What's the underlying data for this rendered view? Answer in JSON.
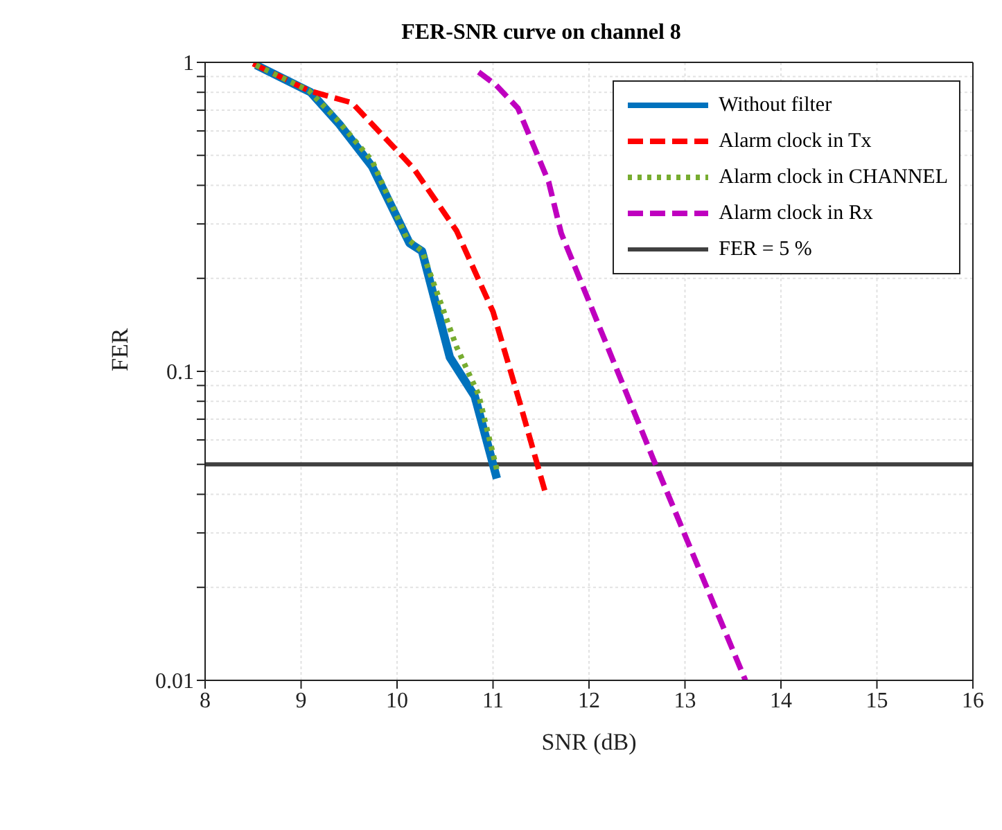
{
  "chart_data": {
    "type": "line",
    "title": "FER-SNR curve on channel 8",
    "xlabel": "SNR (dB)",
    "ylabel": "FER",
    "log": "y",
    "grid": true,
    "legend": "top right",
    "marker": "none",
    "xlim": [
      8,
      16
    ],
    "xticks": [
      8,
      9,
      10,
      11,
      12,
      13,
      14,
      15,
      16
    ],
    "ylim": [
      0.01,
      1
    ],
    "yticks": [
      0.01,
      {
        "value": 0.02,
        "label": null
      },
      {
        "value": 0.03,
        "label": null
      },
      {
        "value": 0.04,
        "label": null
      },
      {
        "value": 0.05,
        "label": null
      },
      {
        "value": 0.06,
        "label": null
      },
      {
        "value": 0.07,
        "label": null
      },
      {
        "value": 0.08,
        "label": null
      },
      {
        "value": 0.09,
        "label": null
      },
      0.1,
      {
        "value": 0.2,
        "label": null
      },
      {
        "value": 0.3,
        "label": null
      },
      {
        "value": 0.4,
        "label": null
      },
      {
        "value": 0.5,
        "label": null
      },
      {
        "value": 0.6,
        "label": null
      },
      {
        "value": 0.7,
        "label": null
      },
      {
        "value": 0.8,
        "label": null
      },
      {
        "value": 0.9,
        "label": null
      },
      1
    ],
    "series": [
      {
        "name": "Without filter",
        "color": "#0072bd",
        "line_style": "solid",
        "x": [
          8.53,
          9.1,
          9.4,
          9.74,
          10.13,
          10.26,
          10.55,
          10.81,
          11.04
        ],
        "values": [
          0.98,
          0.8,
          0.63,
          0.46,
          0.26,
          0.245,
          0.111,
          0.083,
          0.045
        ]
      },
      {
        "name": "Alarm clock in Tx",
        "color": "#ff0000",
        "line_style": "dashed",
        "x": [
          8.5,
          9.08,
          9.53,
          10.17,
          10.62,
          11.0,
          11.28,
          11.54
        ],
        "values": [
          0.99,
          0.81,
          0.74,
          0.455,
          0.285,
          0.156,
          0.079,
          0.041
        ]
      },
      {
        "name": "Alarm clock in CHANNEL",
        "color": "#77ac30",
        "line_style": "dotted",
        "x": [
          8.53,
          9.08,
          9.36,
          9.74,
          10.1,
          10.26,
          10.62,
          10.85,
          11.04
        ],
        "values": [
          0.98,
          0.81,
          0.66,
          0.48,
          0.27,
          0.245,
          0.12,
          0.084,
          0.048
        ]
      },
      {
        "name": "Alarm clock in Rx",
        "color": "#bf00bf",
        "line_style": "dashed",
        "x": [
          10.85,
          11.03,
          11.26,
          11.58,
          11.71,
          12.67,
          13.63
        ],
        "values": [
          0.93,
          0.845,
          0.71,
          0.41,
          0.28,
          0.052,
          0.01
        ]
      }
    ],
    "ref_lines": [
      {
        "axis": "y",
        "value": 0.05,
        "label": "FER = 5 %",
        "color": "#404040",
        "line_style": "solid"
      }
    ]
  }
}
